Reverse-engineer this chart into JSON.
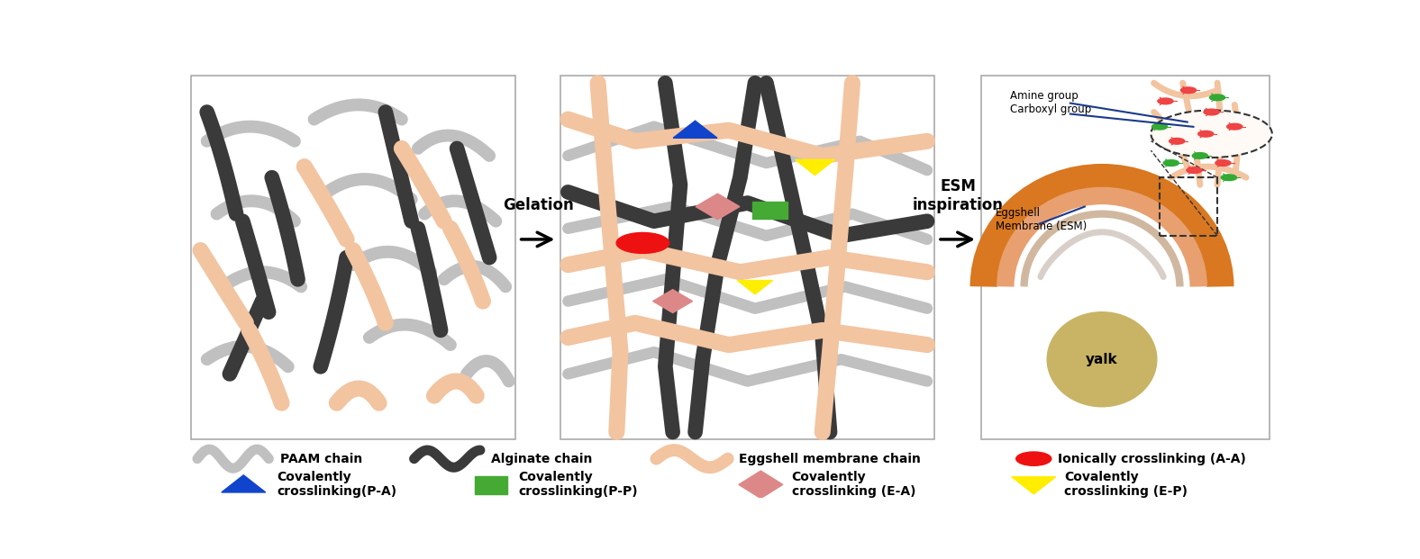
{
  "fig_width": 15.76,
  "fig_height": 6.21,
  "bg_color": "#ffffff",
  "p1": [
    0.012,
    0.135,
    0.295,
    0.845
  ],
  "p2": [
    0.348,
    0.135,
    0.34,
    0.845
  ],
  "p3": [
    0.73,
    0.135,
    0.262,
    0.845
  ],
  "paam_color": "#c0c0c0",
  "alg_color": "#3a3a3a",
  "esm_color": "#f2c4a0",
  "ionic_color": "#ee1111",
  "cov_pa_color": "#1144cc",
  "cov_pp_color": "#44aa33",
  "cov_ea_color": "#dd8888",
  "cov_ep_color": "#ffee00",
  "egg_outer": "#d97820",
  "egg_mid": "#e8a070",
  "egg_inner_line": "#d0b8a0",
  "egg_white_line": "#cccccc",
  "yolk_color": "#c8b464",
  "dark_blue": "#1a3a8a"
}
